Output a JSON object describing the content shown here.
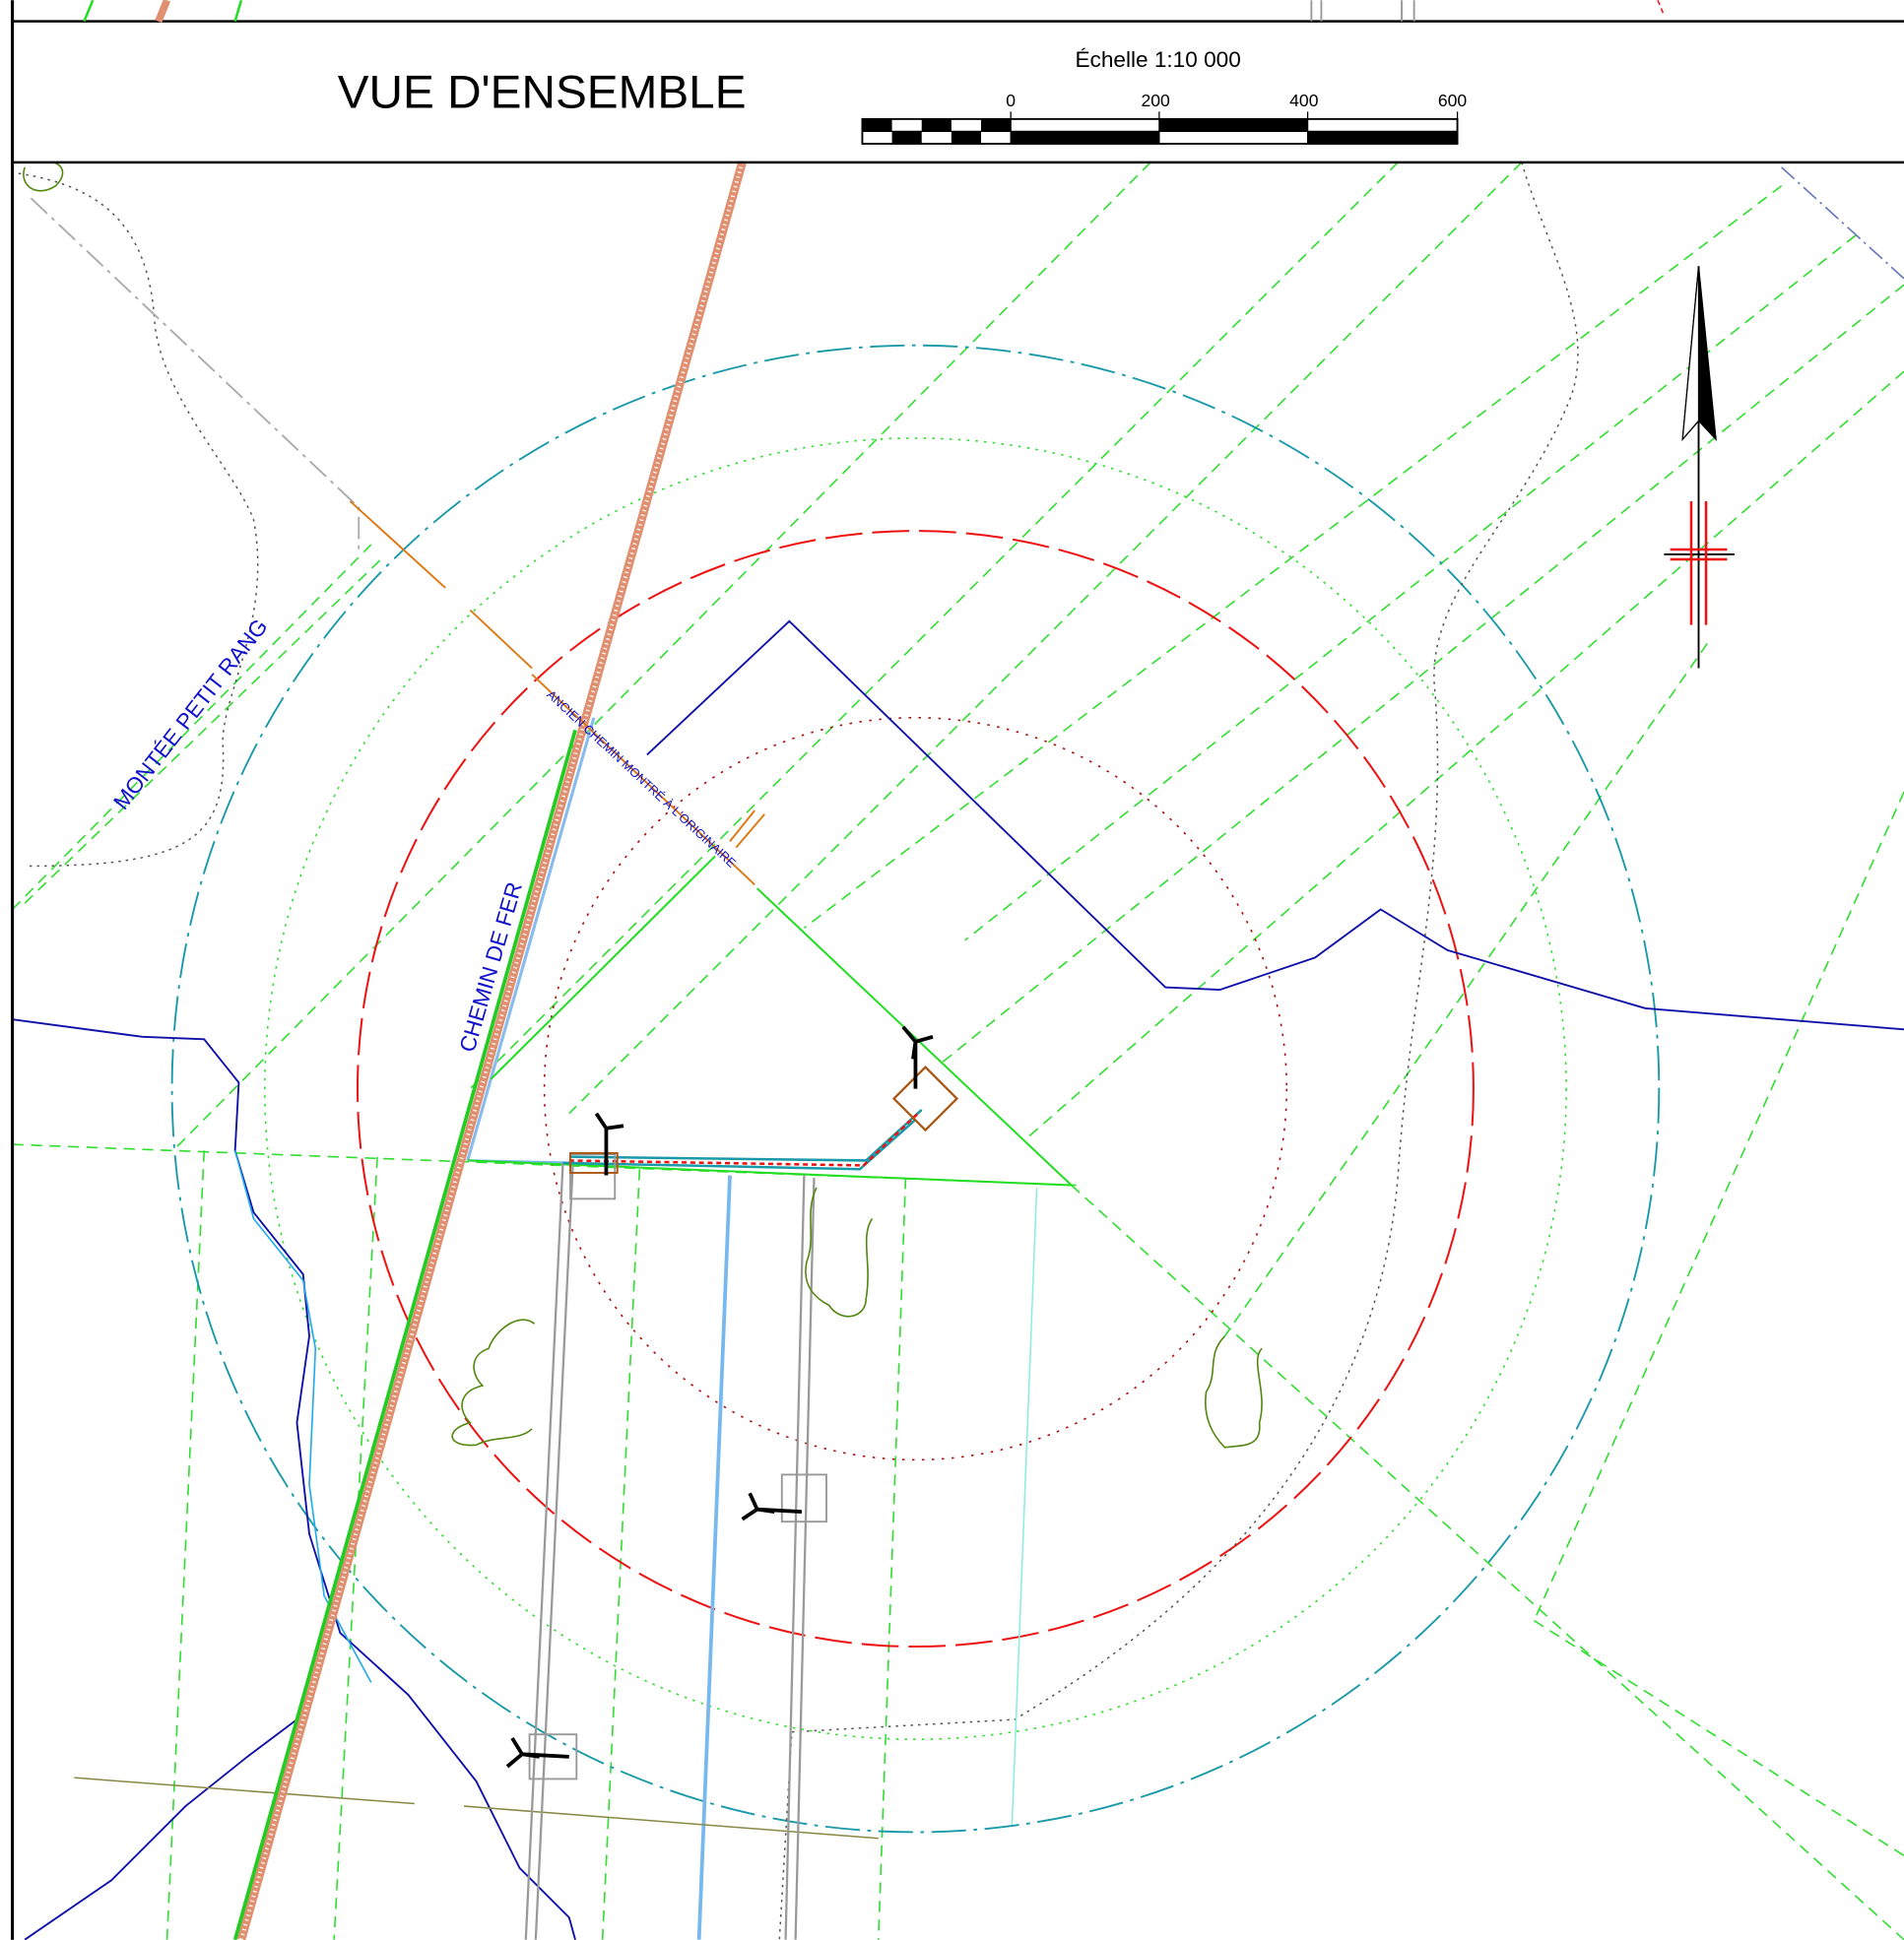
{
  "header": {
    "title": "VUE D'ENSEMBLE",
    "scale_label": "Échelle  1:10 000",
    "scale_ticks": [
      0,
      200,
      400,
      600
    ]
  },
  "labels": {
    "road": "MONTÉE PETIT RANG",
    "railway": "CHEMIN DE FER",
    "old_road": "ANCIEN CHEMIN MONTRÉ À L'ORIGINAIRE"
  }
}
